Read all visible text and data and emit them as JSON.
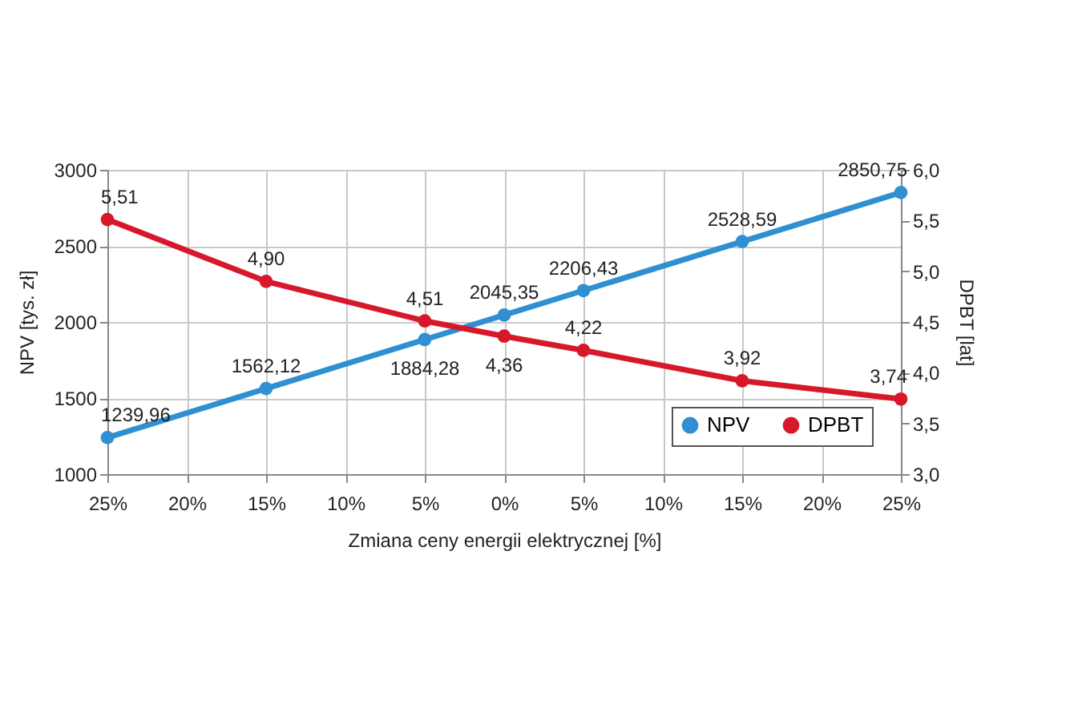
{
  "chart_data": {
    "type": "line",
    "xlabel": "Zmiana ceny energii elektrycznej [%]",
    "ylabel": "NPV [tys. zł]",
    "y2label": "DPBT [lat]",
    "x": [
      -25,
      -15,
      -5,
      0,
      5,
      15,
      25
    ],
    "xlim": [
      -25,
      25
    ],
    "xticks": [
      {
        "value": -25,
        "label": "25%"
      },
      {
        "value": -20,
        "label": "20%"
      },
      {
        "value": -15,
        "label": "15%"
      },
      {
        "value": -10,
        "label": "10%"
      },
      {
        "value": -5,
        "label": "5%"
      },
      {
        "value": 0,
        "label": "0%"
      },
      {
        "value": 5,
        "label": "5%"
      },
      {
        "value": 10,
        "label": "10%"
      },
      {
        "value": 15,
        "label": "15%"
      },
      {
        "value": 20,
        "label": "20%"
      },
      {
        "value": 25,
        "label": "25%"
      }
    ],
    "ylim": [
      1000,
      3000
    ],
    "yticks": [
      1000,
      1500,
      2000,
      2500,
      3000
    ],
    "y2lim": [
      3.0,
      6.0
    ],
    "y2ticks": [
      {
        "value": 3.0,
        "label": "3,0"
      },
      {
        "value": 3.5,
        "label": "3,5"
      },
      {
        "value": 4.0,
        "label": "4,0"
      },
      {
        "value": 4.5,
        "label": "4,5"
      },
      {
        "value": 5.0,
        "label": "5,0"
      },
      {
        "value": 5.5,
        "label": "5,5"
      },
      {
        "value": 6.0,
        "label": "6,0"
      }
    ],
    "series": [
      {
        "name": "NPV",
        "color": "#2f8fd0",
        "values": [
          1239.96,
          1562.12,
          1884.28,
          2045.35,
          2206.43,
          2528.59,
          2850.75
        ],
        "value_labels": [
          "1239,96",
          "1562,12",
          "1884,28",
          "2045,35",
          "2206,43",
          "2528,59",
          "2850,75"
        ]
      },
      {
        "name": "DPBT",
        "color": "#d7182a",
        "axis": "y2",
        "values": [
          5.51,
          4.9,
          4.51,
          4.36,
          4.22,
          3.92,
          3.74
        ],
        "value_labels": [
          "5,51",
          "4,90",
          "4,51",
          "4,36",
          "4,22",
          "3,92",
          "3,74"
        ]
      }
    ],
    "grid": true,
    "legend": "bottom right",
    "marker": "circle",
    "line_style": "solid"
  }
}
